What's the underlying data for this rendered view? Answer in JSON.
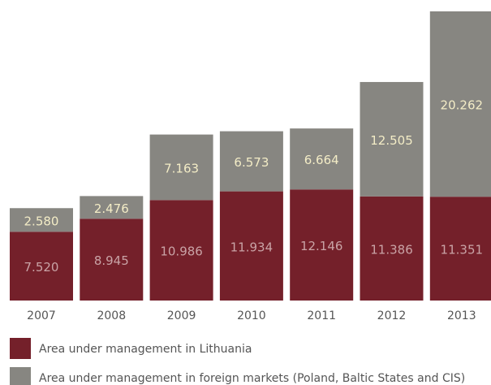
{
  "chart_data": {
    "type": "stacked-bar",
    "categories": [
      "2007",
      "2008",
      "2009",
      "2010",
      "2011",
      "2012",
      "2013"
    ],
    "series": [
      {
        "name": "Area under management in Lithuania",
        "color": "#74202a",
        "values": [
          7.52,
          8.945,
          10.986,
          11.934,
          12.146,
          11.386,
          11.351
        ],
        "value_labels": [
          "7.520",
          "8.945",
          "10.986",
          "11.934",
          "12.146",
          "11.386",
          "11.351"
        ]
      },
      {
        "name": "Area under management in foreign markets (Poland, Baltic States and CIS)",
        "color": "#878681",
        "values": [
          2.58,
          2.476,
          7.163,
          6.573,
          6.664,
          12.505,
          20.262
        ],
        "value_labels": [
          "2.580",
          "2.476",
          "7.163",
          "6.573",
          "6.664",
          "12.505",
          "20.262"
        ]
      }
    ]
  }
}
